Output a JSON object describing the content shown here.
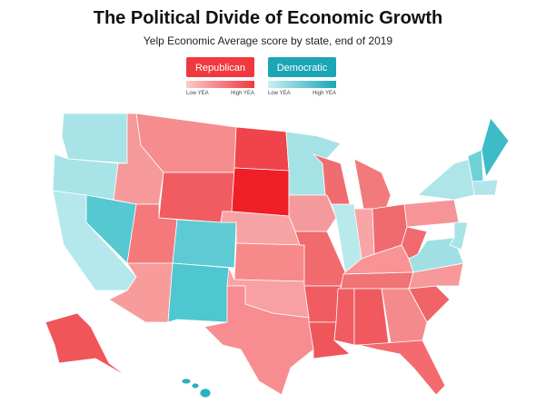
{
  "header": {
    "title": "The Political Divide of Economic Growth",
    "subtitle": "Yelp Economic Average score by state, end of 2019"
  },
  "legend": [
    {
      "label": "Republican",
      "color": "#f0393f",
      "low": "Low YEA",
      "high": "High YEA",
      "gradient": [
        "#fcc9ca",
        "#f0393f"
      ]
    },
    {
      "label": "Democratic",
      "color": "#1aa6b7",
      "low": "Low YEA",
      "high": "High YEA",
      "gradient": [
        "#c9eff2",
        "#1aa6b7"
      ]
    }
  ]
}
